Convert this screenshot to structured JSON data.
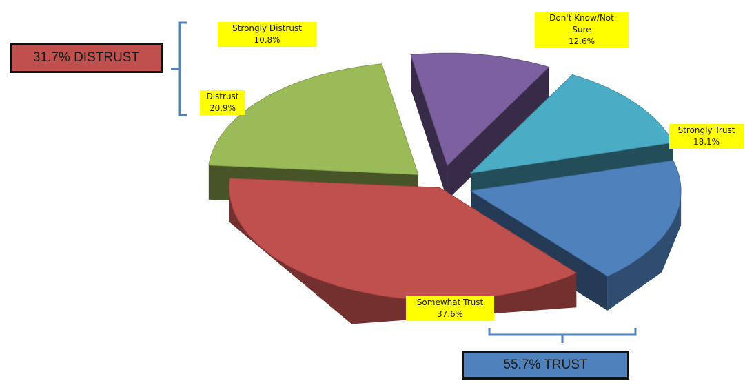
{
  "chart_data": {
    "type": "pie",
    "title": "",
    "style": "3d-exploded",
    "slices": [
      {
        "label": "Strongly Distrust",
        "value": 10.8,
        "value_label": "10.8%",
        "color": "#7d60a0"
      },
      {
        "label": "Don't Know/Not Sure",
        "value": 12.6,
        "value_label": "12.6%",
        "color": "#4bacc6"
      },
      {
        "label": "Strongly Trust",
        "value": 18.1,
        "value_label": "18.1%",
        "color": "#4f81bd"
      },
      {
        "label": "Somewhat Trust",
        "value": 37.6,
        "value_label": "37.6%",
        "color": "#c0504d"
      },
      {
        "label": "Distrust",
        "value": 20.9,
        "value_label": "20.9%",
        "color": "#9bbb59"
      }
    ],
    "label_background": "#ffff00"
  },
  "annotations": {
    "distrust_summary": {
      "text": "31.7% DISTRUST",
      "color": "#c0504d"
    },
    "trust_summary": {
      "text": "55.7% TRUST",
      "color": "#4f81bd"
    },
    "bracket_color": "#4f81bd"
  },
  "labels": {
    "strongly_distrust": {
      "name": "Strongly Distrust",
      "value": "10.8%"
    },
    "dont_know_line1": "Don't Know/Not",
    "dont_know_line2": "Sure",
    "dont_know_value": "12.6%",
    "strongly_trust": {
      "name": "Strongly Trust",
      "value": "18.1%"
    },
    "somewhat_trust": {
      "name": "Somewhat Trust",
      "value": "37.6%"
    },
    "distrust": {
      "name": "Distrust",
      "value": "20.9%"
    }
  }
}
